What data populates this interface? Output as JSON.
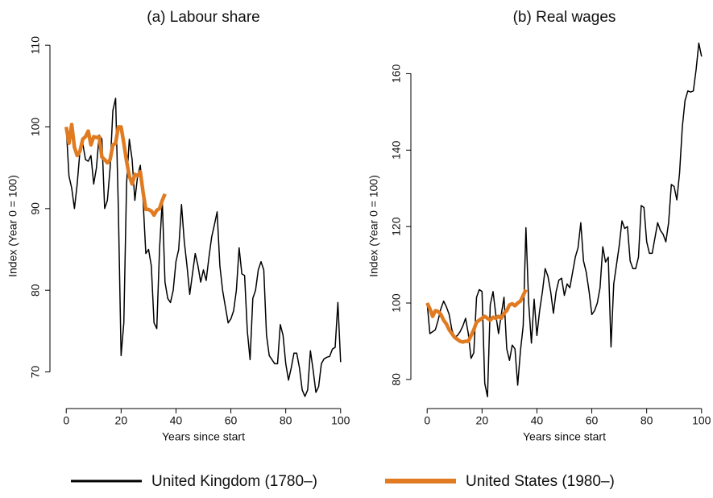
{
  "chart_data": [
    {
      "type": "line",
      "title": "(a) Labour share",
      "x_label": "Years since start",
      "y_label": "Index (Year 0 = 100)",
      "xlim": [
        -3,
        103
      ],
      "xticks": [
        0,
        20,
        40,
        60,
        80,
        100
      ],
      "ylim": [
        66.5,
        111.2
      ],
      "yticks": [
        70,
        80,
        90,
        100,
        110
      ],
      "series": [
        {
          "x": [
            0,
            1,
            2,
            3,
            4,
            5,
            6,
            7,
            8,
            9,
            10,
            11,
            12,
            13,
            14,
            15,
            16,
            17,
            18,
            19,
            20,
            21,
            22,
            23,
            24,
            25,
            26,
            27,
            28,
            29,
            30,
            31,
            32,
            33,
            34,
            35,
            36,
            37,
            38,
            39,
            40,
            41,
            42,
            43,
            44,
            45,
            46,
            47,
            48,
            49,
            50,
            51,
            52,
            53,
            54,
            55,
            56,
            57,
            58,
            59,
            60,
            61,
            62,
            63,
            64,
            65,
            66,
            67,
            68,
            69,
            70,
            71,
            72,
            73,
            74,
            75,
            76,
            77,
            78,
            79,
            80,
            81,
            82,
            83,
            84,
            85,
            86,
            87,
            88,
            89,
            90,
            91,
            92,
            93,
            94,
            95,
            96,
            97,
            98,
            99,
            100
          ],
          "values": [
            100,
            94,
            92.5,
            90,
            93,
            97,
            98,
            96,
            95.8,
            96.5,
            93,
            95,
            99,
            98.5,
            90,
            91,
            95,
            102,
            103.5,
            90,
            72,
            76,
            93,
            98.5,
            96,
            91,
            94,
            95.3,
            91,
            84.5,
            85,
            83,
            76,
            75.3,
            85,
            91,
            81,
            79,
            78.5,
            80,
            83.5,
            85,
            90.5,
            86,
            83,
            79.5,
            82,
            84.5,
            83,
            81,
            82.5,
            81.2,
            84,
            86.5,
            88,
            89.6,
            83,
            80,
            78,
            76,
            76.5,
            77.5,
            80,
            85.2,
            82,
            81.8,
            75,
            71.5,
            79,
            80,
            82.5,
            83.5,
            82.5,
            74.5,
            72,
            71.5,
            71,
            71,
            75.8,
            74.5,
            71,
            69,
            70.5,
            72.3,
            72.3,
            70.5,
            67.8,
            67,
            67.8,
            72.6,
            70.2,
            67.5,
            68.2,
            71,
            71.6,
            71.8,
            71.9,
            72.8,
            73,
            78.5,
            71.2
          ]
        },
        {
          "x": [
            0,
            1,
            2,
            3,
            4,
            5,
            6,
            7,
            8,
            9,
            10,
            11,
            12,
            13,
            14,
            15,
            16,
            17,
            18,
            19,
            20,
            21,
            22,
            23,
            24,
            25,
            26,
            27,
            28,
            29,
            30,
            31,
            32,
            33,
            34,
            35,
            36
          ],
          "values": [
            100,
            98,
            100.3,
            97.5,
            96.5,
            97,
            98.5,
            98.8,
            99.5,
            97.8,
            98.8,
            98.7,
            98.8,
            96.3,
            96,
            95.6,
            96,
            97.8,
            98,
            100,
            100,
            98,
            95.8,
            94,
            93,
            94.2,
            94,
            94.5,
            92,
            89.9,
            89.9,
            89.7,
            89.2,
            89.8,
            90,
            91,
            91.8
          ]
        }
      ]
    },
    {
      "type": "line",
      "title": "(b) Real wages",
      "x_label": "Years since start",
      "y_label": "Index (Year 0 = 100)",
      "xlim": [
        -3,
        103
      ],
      "xticks": [
        0,
        20,
        40,
        60,
        80,
        100
      ],
      "ylim": [
        74.5,
        170
      ],
      "yticks": [
        80,
        100,
        120,
        140,
        160
      ],
      "series": [
        {
          "x": [
            0,
            1,
            2,
            3,
            4,
            5,
            6,
            7,
            8,
            9,
            10,
            11,
            12,
            13,
            14,
            15,
            16,
            17,
            18,
            19,
            20,
            21,
            22,
            23,
            24,
            25,
            26,
            27,
            28,
            29,
            30,
            31,
            32,
            33,
            34,
            35,
            36,
            37,
            38,
            39,
            40,
            41,
            42,
            43,
            44,
            45,
            46,
            47,
            48,
            49,
            50,
            51,
            52,
            53,
            54,
            55,
            56,
            57,
            58,
            59,
            60,
            61,
            62,
            63,
            64,
            65,
            66,
            67,
            68,
            69,
            70,
            71,
            72,
            73,
            74,
            75,
            76,
            77,
            78,
            79,
            80,
            81,
            82,
            83,
            84,
            85,
            86,
            87,
            88,
            89,
            90,
            91,
            92,
            93,
            94,
            95,
            96,
            97,
            98,
            99,
            100
          ],
          "values": [
            100,
            92,
            92.5,
            93,
            95.5,
            98.5,
            100.5,
            99,
            97,
            93,
            91,
            91.5,
            92.5,
            94,
            96,
            92,
            85.5,
            87,
            101.5,
            103.5,
            103,
            79,
            75.5,
            99.5,
            103,
            97,
            92,
            97,
            101.5,
            88,
            85,
            89,
            88,
            78.5,
            87.5,
            94,
            119.7,
            100,
            89.5,
            101,
            91.5,
            98,
            103,
            109,
            107,
            103,
            97.3,
            103,
            106,
            106.5,
            102,
            105,
            104,
            108,
            112,
            114.5,
            121,
            111,
            108,
            103,
            97,
            98,
            100,
            104,
            114.7,
            110.7,
            112,
            88.5,
            105,
            110,
            115,
            121.5,
            119.5,
            120,
            111,
            109,
            109,
            112,
            125.5,
            125,
            116,
            113,
            113,
            117,
            121,
            119,
            118,
            116,
            121,
            131,
            130.5,
            127,
            134,
            146,
            153,
            155.5,
            155.2,
            155.5,
            161,
            168,
            164.5
          ]
        },
        {
          "x": [
            0,
            1,
            2,
            3,
            4,
            5,
            6,
            7,
            8,
            9,
            10,
            11,
            12,
            13,
            14,
            15,
            16,
            17,
            18,
            19,
            20,
            21,
            22,
            23,
            24,
            25,
            26,
            27,
            28,
            29,
            30,
            31,
            32,
            33,
            34,
            35,
            36
          ],
          "values": [
            100,
            98.5,
            96.5,
            98,
            97.8,
            97,
            95.5,
            94.5,
            93,
            92,
            91,
            90.5,
            90,
            89.8,
            90,
            90,
            91.5,
            93,
            95,
            95.5,
            96,
            96.5,
            96,
            95.5,
            96.3,
            96,
            96.5,
            96,
            97.3,
            98,
            99.5,
            99.8,
            99.3,
            100,
            100.5,
            102,
            103.5
          ]
        }
      ]
    }
  ],
  "legend": [
    {
      "label": "United Kingdom (1780–)",
      "color": "#000000"
    },
    {
      "label": "United States (1980–)",
      "color": "#e07b22"
    }
  ]
}
